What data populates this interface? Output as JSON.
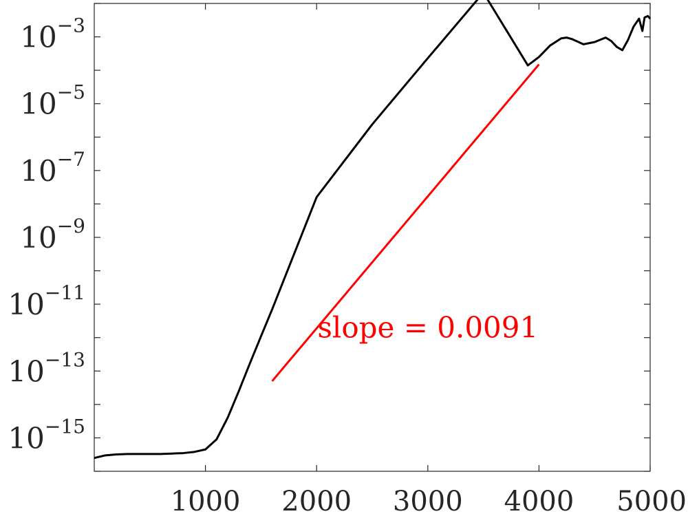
{
  "chart_data": {
    "type": "line",
    "title": "",
    "xlabel": "",
    "ylabel": "",
    "xlim": [
      0,
      5000
    ],
    "ylim": [
      1e-16,
      0.01
    ],
    "yscale": "log",
    "grid": false,
    "colors": {
      "series": "#000000",
      "fit": "#ff0000",
      "axis": "#262626"
    },
    "x_ticks": [
      1000,
      2000,
      3000,
      4000,
      5000
    ],
    "x_tick_labels": [
      "1000",
      "2000",
      "3000",
      "4000",
      "5000"
    ],
    "y_ticks": [
      1e-15,
      1e-13,
      1e-11,
      1e-09,
      1e-07,
      1e-05,
      0.001
    ],
    "y_tick_labels": [
      {
        "base": "10",
        "exp": "−15"
      },
      {
        "base": "10",
        "exp": "−13"
      },
      {
        "base": "10",
        "exp": "−11"
      },
      {
        "base": "10",
        "exp": "−9"
      },
      {
        "base": "10",
        "exp": "−7"
      },
      {
        "base": "10",
        "exp": "−5"
      },
      {
        "base": "10",
        "exp": "−3"
      }
    ],
    "series": [
      {
        "x": [
          0,
          100,
          200,
          300,
          400,
          500,
          600,
          700,
          800,
          900,
          1000,
          1100,
          1200,
          1300,
          1400,
          1500,
          1600,
          2000,
          2500,
          3000,
          3500,
          3900,
          4000,
          4100,
          4200,
          4250,
          4300,
          4400,
          4500,
          4600,
          4650,
          4700,
          4750,
          4800,
          4850,
          4900,
          4930,
          4950,
          4980,
          5000
        ],
        "y": [
          2.5e-16,
          3e-16,
          3.2e-16,
          3.3e-16,
          3.3e-16,
          3.3e-16,
          3.3e-16,
          3.4e-16,
          3.5e-16,
          3.8e-16,
          4.5e-16,
          9e-16,
          4e-15,
          2.5e-14,
          1.7e-13,
          1.1e-12,
          7e-12,
          1.6e-08,
          2.4e-06,
          0.00023,
          0.021,
          0.00014,
          0.00025,
          0.00055,
          0.0009,
          0.00095,
          0.00085,
          0.0006,
          0.0007,
          0.00095,
          0.00075,
          0.0005,
          0.0004,
          0.0008,
          0.002,
          0.0035,
          0.0015,
          0.0038,
          0.0042,
          0.0035
        ]
      },
      {
        "x": [
          1600,
          4000
        ],
        "y": [
          5e-14,
          0.00015
        ]
      }
    ],
    "annotations": [
      {
        "text": "slope = 0.0091",
        "x": 3000,
        "y": 1e-12
      }
    ]
  }
}
